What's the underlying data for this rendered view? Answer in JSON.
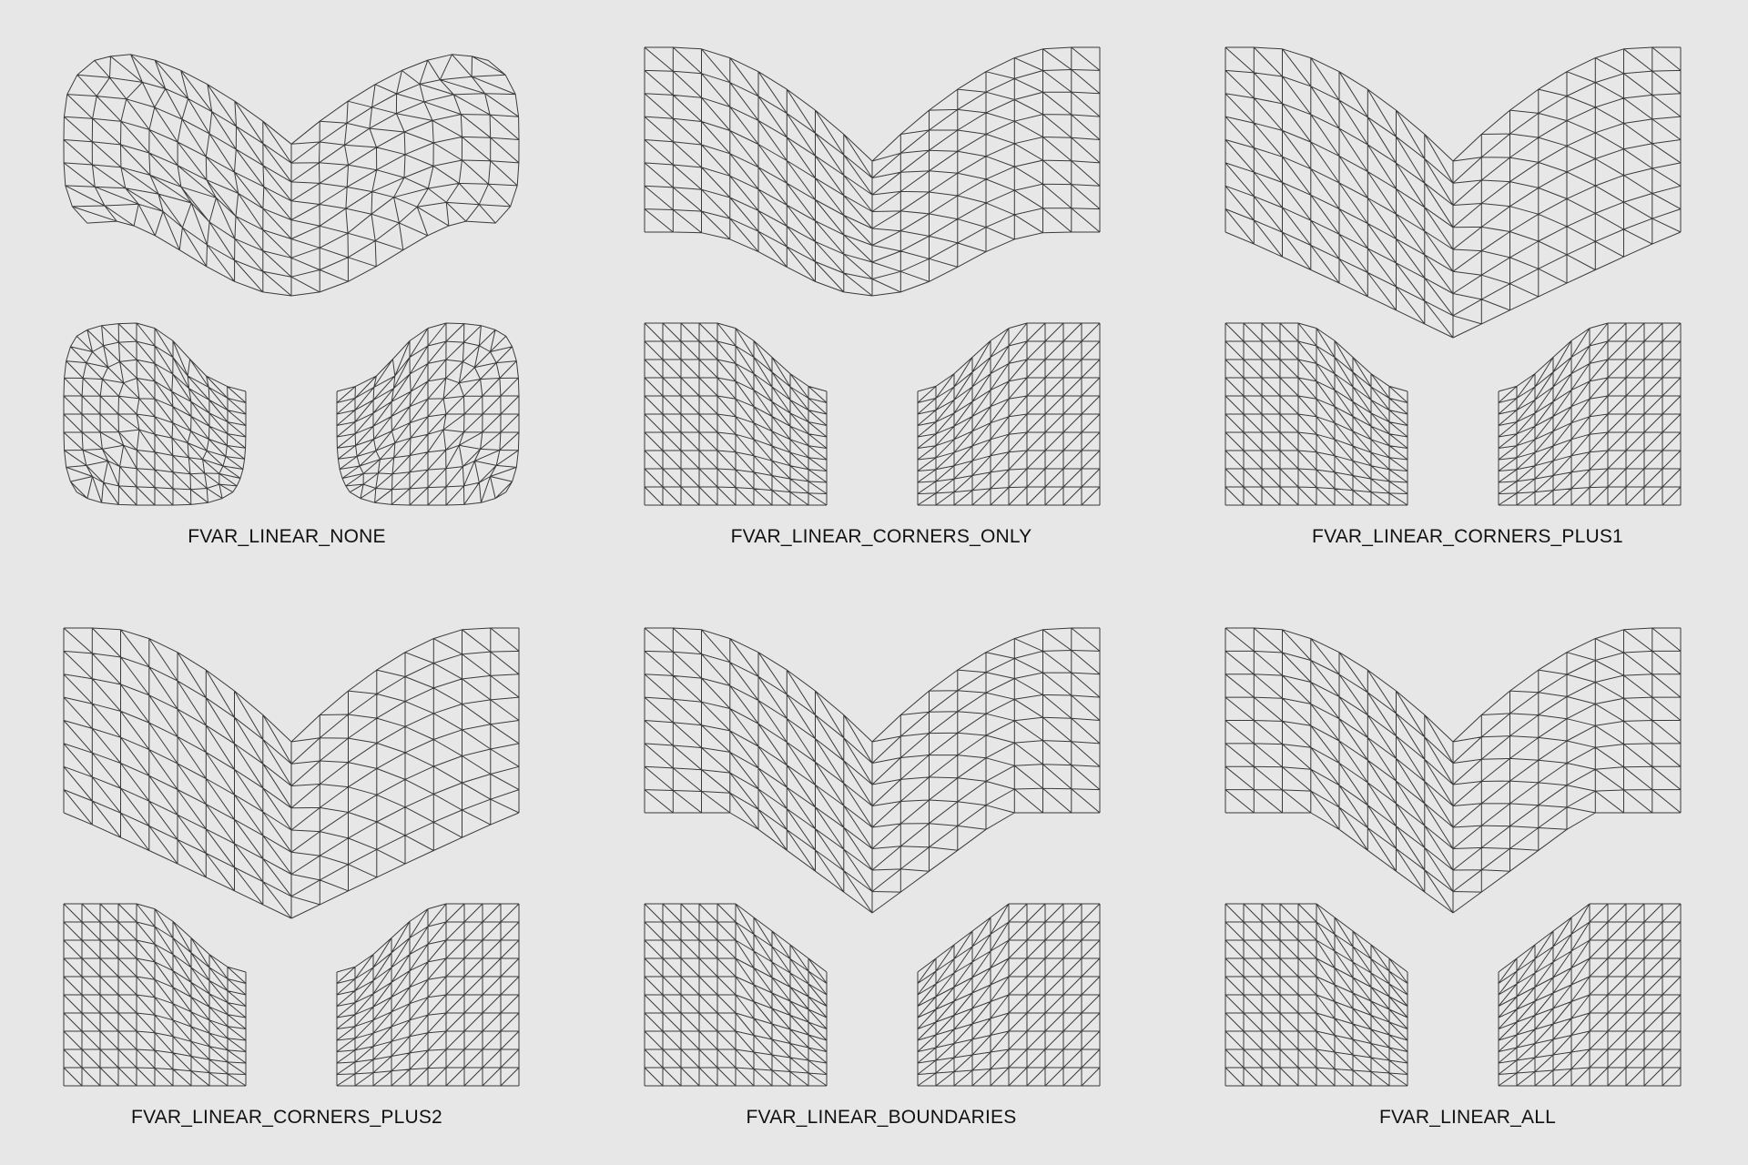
{
  "panels": [
    {
      "label": "FVAR_LINEAR_NONE",
      "mode": "none"
    },
    {
      "label": "FVAR_LINEAR_CORNERS_ONLY",
      "mode": "corners_only"
    },
    {
      "label": "FVAR_LINEAR_CORNERS_PLUS1",
      "mode": "corners_plus1"
    },
    {
      "label": "FVAR_LINEAR_CORNERS_PLUS2",
      "mode": "corners_plus2"
    },
    {
      "label": "FVAR_LINEAR_BOUNDARIES",
      "mode": "boundaries"
    },
    {
      "label": "FVAR_LINEAR_ALL",
      "mode": "all"
    }
  ],
  "colors": {
    "background": "#e7e7e7",
    "line": "#3a3a3a",
    "label": "#111111"
  }
}
